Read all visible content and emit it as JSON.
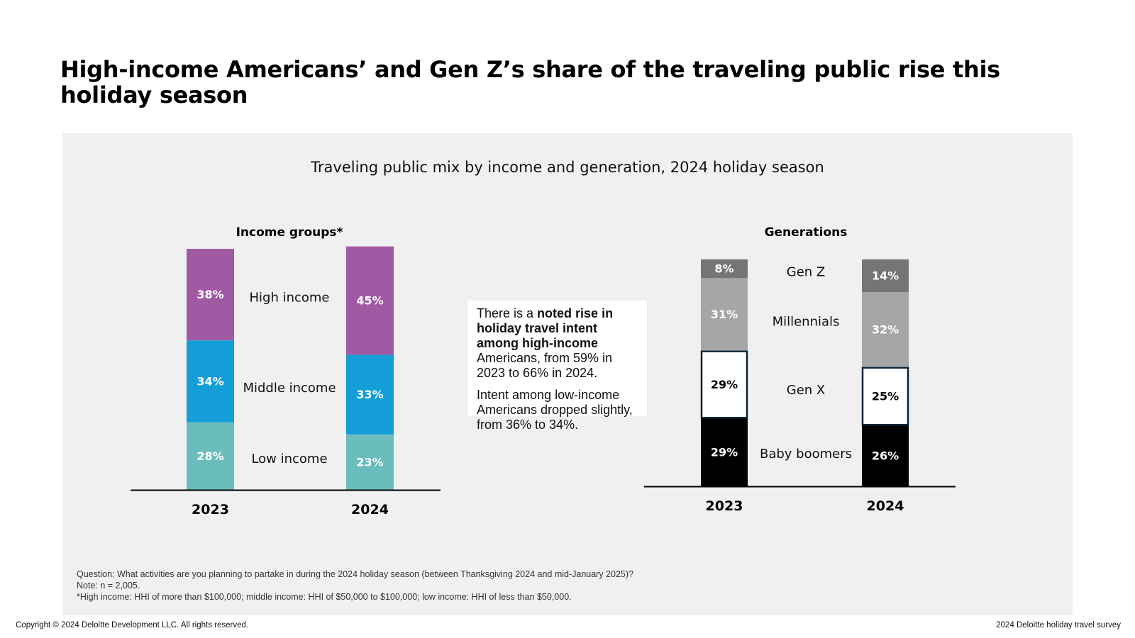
{
  "title": "High-income Americans’ and Gen Z’s share of the traveling public rise this holiday season",
  "subtitle": "Traveling public mix by income and generation, 2024 holiday season",
  "callout": {
    "p1_prefix": "There is a ",
    "p1_bold": "noted rise in holiday travel intent among high-income",
    "p1_suffix": " Americans, from 59% in 2023 to 66% in 2024.",
    "p2": "Intent among low-income Americans dropped slightly, from 36% to 34%."
  },
  "footnotes": {
    "question": "Question: What activities are you planning to partake in during the 2024 holiday season (between Thanksgiving 2024 and mid-January 2025)?",
    "note": "Note: n = 2,005.",
    "definition": "*High income: HHI of more than $100,000; middle income: HHI of $50,000 to $100,000; low income: HHI of less than $50,000."
  },
  "footer": {
    "copyright": "Copyright © 2024 Deloitte Development LLC. All rights reserved.",
    "source": "2024 Deloitte holiday travel survey"
  },
  "chart_data": [
    {
      "type": "bar",
      "stacked": true,
      "title": "Income groups*",
      "categories": [
        "2023",
        "2024"
      ],
      "series": [
        {
          "name": "Low income",
          "values": [
            28,
            23
          ],
          "labels": [
            "28%",
            "23%"
          ],
          "color": "#6bbcbc",
          "label_color": "#ffffff"
        },
        {
          "name": "Middle income",
          "values": [
            34,
            33
          ],
          "labels": [
            "34%",
            "33%"
          ],
          "color": "#149ed8",
          "label_color": "#ffffff"
        },
        {
          "name": "High income",
          "values": [
            38,
            45
          ],
          "labels": [
            "38%",
            "45%"
          ],
          "color": "#a05aa4",
          "label_color": "#ffffff"
        }
      ]
    },
    {
      "type": "bar",
      "stacked": true,
      "title": "Generations",
      "categories": [
        "2023",
        "2024"
      ],
      "series": [
        {
          "name": "Baby boomers",
          "values": [
            29,
            26
          ],
          "labels": [
            "29%",
            "26%"
          ],
          "color": "#000000",
          "label_color": "#ffffff"
        },
        {
          "name": "Gen X",
          "values": [
            29,
            25
          ],
          "labels": [
            "29%",
            "25%"
          ],
          "color": "#ffffff",
          "label_color": "#000000",
          "outline": "#0b2233"
        },
        {
          "name": "Millennials",
          "values": [
            31,
            32
          ],
          "labels": [
            "31%",
            "32%"
          ],
          "color": "#a6a6a6",
          "label_color": "#ffffff"
        },
        {
          "name": "Gen Z",
          "values": [
            8,
            14
          ],
          "labels": [
            "8%",
            "14%"
          ],
          "color": "#757575",
          "label_color": "#ffffff"
        }
      ]
    }
  ]
}
